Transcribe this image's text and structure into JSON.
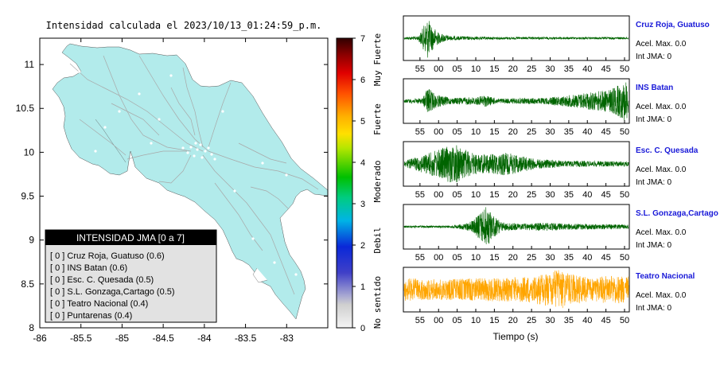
{
  "map": {
    "title": "Intensidad calculada el 2023/10/13_01:24:59_p.m.",
    "xticks": [
      "-86",
      "-85.5",
      "-85",
      "-84.5",
      "-84",
      "-83.5",
      "-83"
    ],
    "yticks": [
      "11",
      "10.5",
      "10",
      "9.5",
      "9",
      "8.5",
      "8"
    ],
    "xlim": [
      -86,
      -82.5
    ],
    "ylim": [
      8,
      11.3
    ],
    "land_color": "#b2ebeb",
    "road_color": "#a8a8a8"
  },
  "colorbar": {
    "ticks": [
      "0",
      "1",
      "2",
      "3",
      "4",
      "5",
      "6",
      "7"
    ],
    "labels": [
      "No sentido",
      "Debil",
      "Moderado",
      "Fuerte",
      "Muy Fuerte"
    ]
  },
  "legend": {
    "title": "INTENSIDAD JMA [0 a 7]",
    "items": [
      "[ 0 ]  Cruz Roja, Guatuso (0.6)",
      "[ 0 ]  INS Batan (0.6)",
      "[ 0 ]  Esc. C. Quesada (0.5)",
      "[ 0 ]  S.L. Gonzaga,Cartago (0.5)",
      "[ 0 ]  Teatro Nacional (0.4)",
      "[ 0 ]  Puntarenas (0.4)"
    ]
  },
  "chart_data": {
    "type": "line",
    "xlabel": "Tiempo (s)",
    "xtick_labels": [
      "55",
      "00",
      "05",
      "10",
      "15",
      "20",
      "25",
      "30",
      "35",
      "40",
      "45",
      "50"
    ],
    "series": [
      {
        "name": "Cruz Roja, Guatuso",
        "acel": "Acel. Max. 0.0",
        "int": "Int JMA: 0",
        "color": "#006400",
        "envelope": [
          [
            0,
            0.06
          ],
          [
            3,
            0.1
          ],
          [
            4,
            0.5
          ],
          [
            5,
            1.0
          ],
          [
            6,
            0.6
          ],
          [
            7.5,
            0.25
          ],
          [
            10,
            0.1
          ],
          [
            20,
            0.06
          ],
          [
            45,
            0.05
          ],
          [
            48,
            0.05
          ]
        ]
      },
      {
        "name": "INS Batan",
        "acel": "Acel. Max. 0.0",
        "int": "Int JMA: 0",
        "color": "#006400",
        "envelope": [
          [
            0,
            0.08
          ],
          [
            4,
            0.15
          ],
          [
            5,
            0.7
          ],
          [
            6.5,
            0.35
          ],
          [
            10,
            0.15
          ],
          [
            16,
            0.2
          ],
          [
            17,
            0.3
          ],
          [
            20,
            0.12
          ],
          [
            30,
            0.15
          ],
          [
            36,
            0.3
          ],
          [
            40,
            0.45
          ],
          [
            44,
            0.55
          ],
          [
            46.5,
            0.85
          ],
          [
            47.5,
            1.0
          ],
          [
            48,
            0.6
          ]
        ]
      },
      {
        "name": "Esc. C. Quesada",
        "acel": "Acel. Max. 0.0",
        "int": "Int JMA: 0",
        "color": "#006400",
        "envelope": [
          [
            0,
            0.15
          ],
          [
            3,
            0.35
          ],
          [
            6,
            0.6
          ],
          [
            11,
            1.0
          ],
          [
            13,
            0.7
          ],
          [
            16,
            0.45
          ],
          [
            21,
            0.55
          ],
          [
            23,
            0.5
          ],
          [
            28,
            0.25
          ],
          [
            35,
            0.15
          ],
          [
            48,
            0.12
          ]
        ]
      },
      {
        "name": "S.L. Gonzaga,Cartago",
        "acel": "Acel. Max. 0.0",
        "int": "Int JMA: 0",
        "color": "#006400",
        "envelope": [
          [
            0,
            0.05
          ],
          [
            10,
            0.06
          ],
          [
            13,
            0.15
          ],
          [
            15,
            0.35
          ],
          [
            16.5,
            0.75
          ],
          [
            17.5,
            1.0
          ],
          [
            19,
            0.55
          ],
          [
            21,
            0.2
          ],
          [
            25,
            0.15
          ],
          [
            30,
            0.2
          ],
          [
            35,
            0.15
          ],
          [
            48,
            0.1
          ]
        ]
      },
      {
        "name": "Teatro Nacional",
        "acel": "Acel. Max. 0.0",
        "int": "Int JMA: 0",
        "color": "#FFA500",
        "envelope": [
          [
            0,
            0.55
          ],
          [
            8,
            0.5
          ],
          [
            15,
            0.55
          ],
          [
            25,
            0.6
          ],
          [
            31,
            0.8
          ],
          [
            33,
            1.0
          ],
          [
            35,
            0.8
          ],
          [
            40,
            0.55
          ],
          [
            44,
            0.7
          ],
          [
            48,
            0.65
          ]
        ]
      }
    ]
  }
}
